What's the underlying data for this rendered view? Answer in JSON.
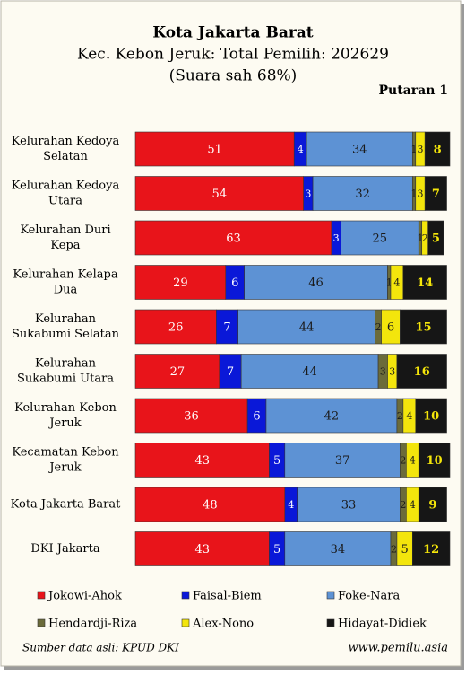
{
  "chart_data": {
    "type": "stacked_barh",
    "title": "Kota Jakarta Barat",
    "subtitle": [
      "Kec. Kebon Jeruk: Total Pemilih: 202629",
      "(Suara sah 68%)"
    ],
    "annotation": "Putaran 1",
    "source": "Sumber data asli: KPUD DKI",
    "website": "www.pemilu.asia",
    "categories": [
      [
        "Kelurahan Kedoya",
        "Selatan"
      ],
      [
        "Kelurahan Kedoya",
        "Utara"
      ],
      [
        "Kelurahan Duri",
        "Kepa"
      ],
      [
        "Kelurahan Kelapa",
        "Dua"
      ],
      [
        "Kelurahan",
        "Sukabumi Selatan"
      ],
      [
        "Kelurahan",
        "Sukabumi Utara"
      ],
      [
        "Kelurahan Kebon",
        "Jeruk"
      ],
      [
        "Kecamatan Kebon",
        "Jeruk"
      ],
      [
        "Kota Jakarta Barat"
      ],
      [
        "DKI Jakarta"
      ]
    ],
    "series": [
      {
        "name": "Jokowi-Ahok",
        "color": "#e8141a",
        "values": [
          51,
          54,
          63,
          29,
          26,
          27,
          36,
          43,
          48,
          43
        ]
      },
      {
        "name": "Faisal-Biem",
        "color": "#0a18d8",
        "values": [
          4,
          3,
          3,
          6,
          7,
          7,
          6,
          5,
          4,
          5
        ]
      },
      {
        "name": "Foke-Nara",
        "color": "#5d92d4",
        "values": [
          34,
          32,
          25,
          46,
          44,
          44,
          42,
          37,
          33,
          34
        ]
      },
      {
        "name": "Hendardji-Riza",
        "color": "#6b6b3a",
        "values": [
          1,
          1,
          1,
          1,
          2,
          3,
          2,
          2,
          2,
          2
        ]
      },
      {
        "name": "Alex-Nono",
        "color": "#f3e50c",
        "values": [
          3,
          3,
          2,
          4,
          6,
          3,
          4,
          4,
          4,
          5
        ]
      },
      {
        "name": "Hidayat-Didiek",
        "color": "#161616",
        "values": [
          8,
          7,
          5,
          14,
          15,
          16,
          10,
          10,
          9,
          12
        ]
      }
    ],
    "xlim": [
      0,
      101
    ],
    "legend": "bottom"
  }
}
